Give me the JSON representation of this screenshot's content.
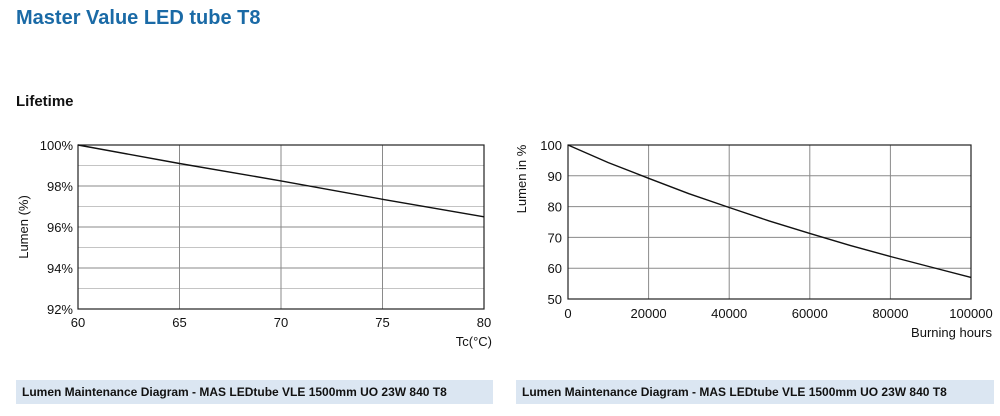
{
  "header": {
    "title": "Master Value LED tube T8",
    "section": "Lifetime"
  },
  "captions": [
    "Lumen Maintenance Diagram - MAS LEDtube VLE 1500mm UO 23W 840 T8",
    "Lumen Maintenance Diagram - MAS LEDtube VLE 1500mm UO 23W 840 T8"
  ],
  "chart_data": [
    {
      "type": "line",
      "title": "",
      "xlabel": "Tc(°C)",
      "ylabel": "Lumen (%)",
      "xlim": [
        60,
        80
      ],
      "ylim": [
        92,
        100
      ],
      "xticks": [
        60,
        65,
        70,
        75,
        80
      ],
      "xtick_labels": [
        "60",
        "65",
        "70",
        "75",
        "80"
      ],
      "yticks": [
        92,
        94,
        96,
        98,
        100
      ],
      "ytick_labels": [
        "92%",
        "94%",
        "96%",
        "98%",
        "100%"
      ],
      "grid": true,
      "series": [
        {
          "x": [
            60,
            65,
            70,
            75,
            80
          ],
          "y": [
            100,
            99.1,
            98.25,
            97.35,
            96.5
          ]
        }
      ]
    },
    {
      "type": "line",
      "title": "",
      "xlabel": "Burning hours",
      "ylabel": "Lumen in %",
      "xlim": [
        0,
        100000
      ],
      "ylim": [
        50,
        100
      ],
      "xticks": [
        0,
        20000,
        40000,
        60000,
        80000,
        100000
      ],
      "xtick_labels": [
        "0",
        "20000",
        "40000",
        "60000",
        "80000",
        "100000"
      ],
      "yticks": [
        50,
        60,
        70,
        80,
        90,
        100
      ],
      "ytick_labels": [
        "50",
        "60",
        "70",
        "80",
        "90",
        "100"
      ],
      "grid": true,
      "series": [
        {
          "x": [
            0,
            10000,
            20000,
            30000,
            40000,
            50000,
            60000,
            70000,
            80000,
            90000,
            100000
          ],
          "y": [
            100,
            94.3,
            89.2,
            84.2,
            79.7,
            75.3,
            71.3,
            67.4,
            63.8,
            60.4,
            57
          ]
        }
      ]
    }
  ]
}
